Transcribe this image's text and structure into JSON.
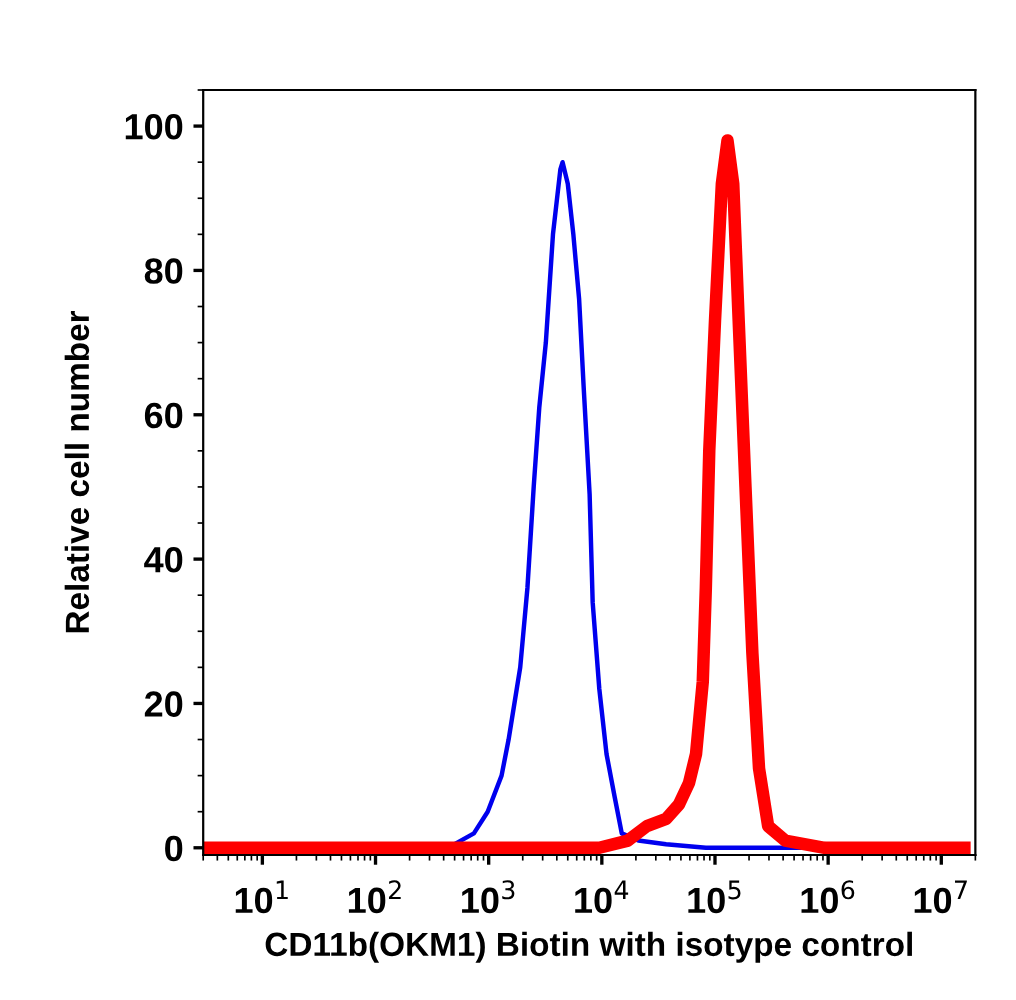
{
  "chart_data": {
    "type": "line",
    "xlabel": "CD11b(OKM1) Biotin with isotype control",
    "ylabel": "Relative cell number",
    "log": "x",
    "xlim": [
      3,
      20000000
    ],
    "ylim": [
      -1,
      105
    ],
    "xticks": [
      {
        "value": 10,
        "label": "10$^{1}$"
      },
      {
        "value": 100,
        "label": "10$^{2}$"
      },
      {
        "value": 1000,
        "label": "10$^{3}$"
      },
      {
        "value": 10000,
        "label": "10$^{4}$"
      },
      {
        "value": 100000,
        "label": "10$^{5}$"
      },
      {
        "value": 1000000,
        "label": "10$^{6}$"
      },
      {
        "value": 10000000,
        "label": "10$^{7}$"
      }
    ],
    "yticks": [
      0,
      20,
      40,
      60,
      80,
      100
    ],
    "grid": false,
    "marker": "none",
    "line_style": "solid",
    "series": [
      {
        "color": "#0000ee",
        "x": [
          290,
          500,
          740,
          980,
          1300,
          1500,
          1900,
          2200,
          2500,
          2800,
          3200,
          3700,
          4300,
          4500,
          5000,
          5600,
          6300,
          6900,
          7800,
          8300,
          9500,
          11000,
          13000,
          15000,
          21000,
          37000,
          83000,
          16000000
        ],
        "values": [
          0,
          0.5,
          2,
          5,
          10,
          15,
          25,
          36,
          50,
          61,
          70,
          85,
          94,
          95,
          92,
          85,
          76,
          64,
          49,
          34,
          22,
          13,
          7,
          2,
          1,
          0.5,
          0,
          0
        ]
      },
      {
        "color": "#ff0000",
        "x": [
          3.2,
          5000,
          9500,
          17000,
          25000,
          37000,
          48000,
          59000,
          68000,
          78000,
          83000,
          89000,
          100000,
          115000,
          129000,
          145000,
          162000,
          186000,
          214000,
          245000,
          295000,
          417000,
          930000,
          1400000,
          16000000
        ],
        "values": [
          0,
          0,
          0,
          1,
          3,
          4,
          6,
          9,
          13,
          23,
          36,
          55,
          73,
          92,
          98,
          92,
          73,
          50,
          27,
          11,
          3,
          1,
          0,
          0,
          0
        ]
      }
    ]
  }
}
